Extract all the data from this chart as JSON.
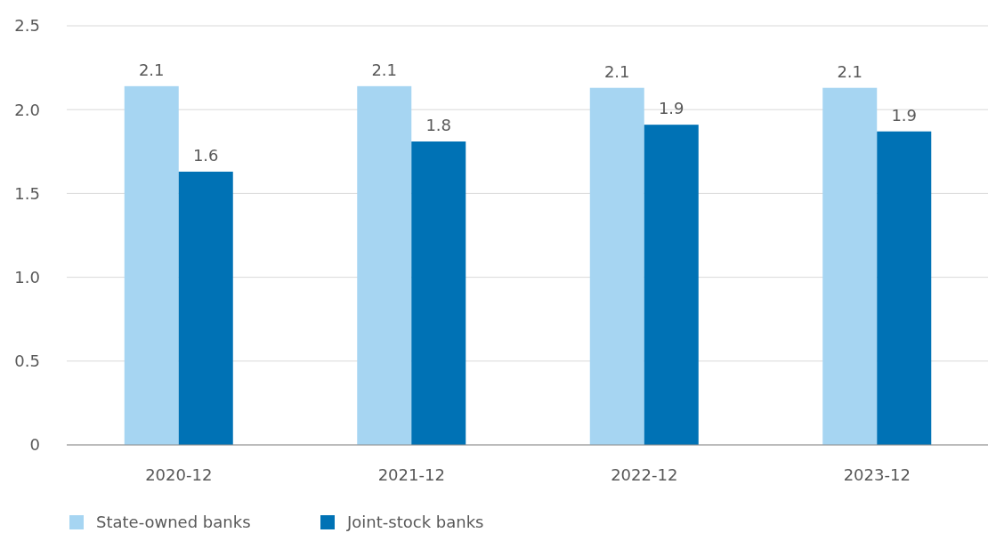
{
  "chart_data": {
    "type": "bar",
    "categories": [
      "2020-12",
      "2021-12",
      "2022-12",
      "2023-12"
    ],
    "series": [
      {
        "name": "State-owned banks",
        "color": "#a6d5f2",
        "values": [
          2.14,
          2.14,
          2.13,
          2.13
        ],
        "value_labels": [
          "2.1",
          "2.1",
          "2.1",
          "2.1"
        ]
      },
      {
        "name": "Joint-stock banks",
        "color": "#0072b5",
        "values": [
          1.63,
          1.81,
          1.91,
          1.87
        ],
        "value_labels": [
          "1.6",
          "1.8",
          "1.9",
          "1.9"
        ]
      }
    ],
    "ylim": [
      0,
      2.5
    ],
    "yticks": [
      0,
      0.5,
      {
        "value": 1,
        "label": "1.0"
      },
      1.5,
      {
        "value": 2,
        "label": "2.0"
      },
      2.5
    ],
    "grid": "y",
    "legend": "bottom left"
  }
}
